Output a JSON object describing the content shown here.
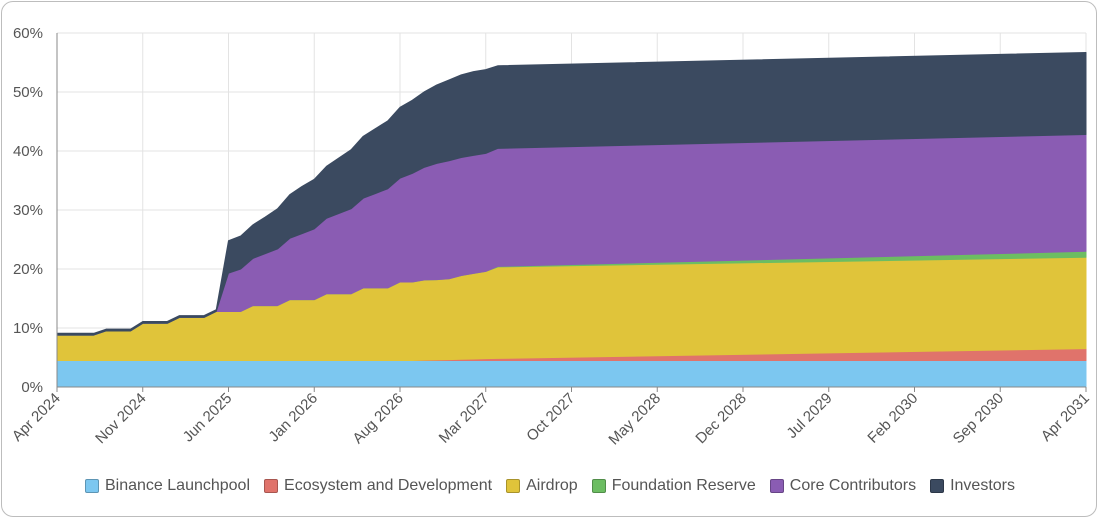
{
  "chart_data": {
    "type": "area",
    "stacked": true,
    "title": "",
    "xlabel": "",
    "ylabel": "",
    "ylim": [
      0,
      60
    ],
    "yticks": [
      "0%",
      "10%",
      "20%",
      "30%",
      "40%",
      "50%",
      "60%"
    ],
    "x_ticks": [
      "Apr 2024",
      "Nov 2024",
      "Jun 2025",
      "Jan 2026",
      "Aug 2026",
      "Mar 2027",
      "Oct 2027",
      "May 2028",
      "Dec 2028",
      "Jul 2029",
      "Feb 2030",
      "Sep 2030",
      "Apr 2031"
    ],
    "x": [
      0,
      1,
      2,
      3,
      4,
      5,
      6,
      7,
      8,
      9,
      10,
      11,
      12,
      13,
      14,
      15,
      16,
      17,
      18,
      19,
      20,
      21,
      22,
      23,
      24,
      25,
      26,
      27,
      28,
      29,
      30,
      31,
      32,
      33,
      34,
      35,
      36,
      84
    ],
    "x_unit": "months since Apr 2024",
    "grid": true,
    "legend_position": "bottom",
    "series": [
      {
        "name": "Binance Launchpool",
        "color": "#7cc7f0",
        "values": [
          4.5,
          4.5,
          4.5,
          4.5,
          4.5,
          4.5,
          4.5,
          4.5,
          4.5,
          4.5,
          4.5,
          4.5,
          4.5,
          4.5,
          4.5,
          4.5,
          4.5,
          4.5,
          4.5,
          4.5,
          4.5,
          4.5,
          4.5,
          4.5,
          4.5,
          4.5,
          4.5,
          4.5,
          4.5,
          4.5,
          4.5,
          4.5,
          4.5,
          4.5,
          4.5,
          4.5,
          4.5,
          4.5
        ]
      },
      {
        "name": "Ecosystem and Development",
        "color": "#e0736b",
        "values": [
          0,
          0,
          0,
          0,
          0,
          0,
          0,
          0,
          0,
          0,
          0,
          0,
          0,
          0,
          0,
          0,
          0,
          0,
          0,
          0,
          0,
          0,
          0,
          0,
          0,
          0,
          0,
          0,
          0,
          0,
          0.05,
          0.1,
          0.15,
          0.2,
          0.25,
          0.3,
          0.35,
          2.0
        ]
      },
      {
        "name": "Airdrop",
        "color": "#e0c43a",
        "values": [
          4.3,
          4.3,
          4.3,
          4.3,
          5.0,
          5.0,
          5.0,
          6.3,
          6.3,
          6.3,
          7.3,
          7.3,
          7.3,
          8.3,
          8.3,
          8.3,
          9.3,
          9.3,
          9.3,
          10.3,
          10.3,
          10.3,
          11.3,
          11.3,
          11.3,
          12.3,
          12.3,
          12.3,
          13.3,
          13.3,
          13.6,
          13.6,
          13.7,
          14.2,
          14.5,
          14.8,
          15.5,
          15.5
        ]
      },
      {
        "name": "Foundation Reserve",
        "color": "#6cbd62",
        "values": [
          0,
          0,
          0,
          0,
          0,
          0,
          0,
          0,
          0,
          0,
          0,
          0,
          0,
          0,
          0,
          0,
          0,
          0,
          0,
          0,
          0,
          0,
          0,
          0,
          0,
          0,
          0,
          0,
          0,
          0,
          0,
          0,
          0,
          0,
          0,
          0,
          0.1,
          1.0
        ]
      },
      {
        "name": "Core Contributors",
        "color": "#8a5cb3",
        "values": [
          0,
          0,
          0,
          0,
          0,
          0,
          0,
          0,
          0,
          0,
          0,
          0,
          0,
          0,
          6.5,
          7.2,
          8.0,
          8.8,
          9.6,
          10.4,
          11.2,
          12.0,
          12.8,
          13.6,
          14.4,
          15.2,
          16.0,
          16.8,
          17.6,
          18.4,
          19.1,
          19.7,
          20.0,
          20.0,
          20.0,
          20.0,
          20.0,
          19.8
        ]
      },
      {
        "name": "Investors",
        "color": "#3b4a60",
        "values": [
          0.3,
          0.3,
          0.3,
          0.3,
          0.3,
          0.3,
          0.3,
          0.3,
          0.3,
          0.3,
          0.3,
          0.3,
          0.3,
          0.3,
          5.5,
          5.6,
          5.7,
          6.2,
          6.8,
          7.4,
          8.0,
          8.4,
          8.8,
          9.4,
          10.0,
          10.5,
          11.0,
          11.5,
          12.0,
          12.4,
          12.8,
          13.3,
          13.7,
          14.0,
          14.2,
          14.2,
          14.0,
          13.9
        ]
      }
    ]
  }
}
